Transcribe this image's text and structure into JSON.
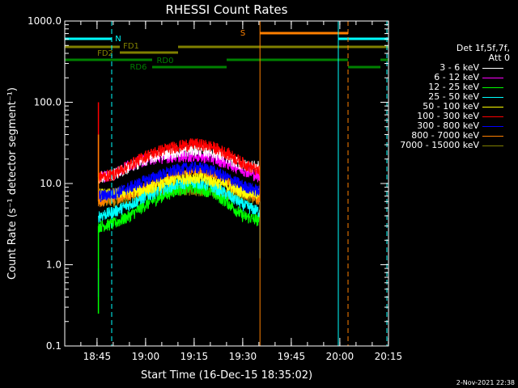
{
  "chart_data": {
    "type": "line",
    "title": "RHESSI Count Rates",
    "xlabel": "Start Time (16-Dec-15 18:35:02)",
    "ylabel": "Count Rate (s⁻¹ detector segment⁻¹)",
    "ylog": true,
    "ylim": [
      0.1,
      1000
    ],
    "xlim_minutes": [
      0,
      100
    ],
    "y_ticks": [
      {
        "value": 1000,
        "label": "1000.0"
      },
      {
        "value": 100,
        "label": "100.0"
      },
      {
        "value": 10,
        "label": "10.0"
      },
      {
        "value": 1,
        "label": "1.0"
      },
      {
        "value": 0.1,
        "label": "0.1"
      }
    ],
    "x_ticks": [
      {
        "minute": 9.97,
        "label": "18:45"
      },
      {
        "minute": 24.97,
        "label": "19:00"
      },
      {
        "minute": 39.97,
        "label": "19:15"
      },
      {
        "minute": 54.97,
        "label": "19:30"
      },
      {
        "minute": 69.97,
        "label": "19:45"
      },
      {
        "minute": 84.97,
        "label": "20:00"
      },
      {
        "minute": 99.97,
        "label": "20:15"
      }
    ],
    "data_window_minutes": [
      10.4,
      60.3
    ],
    "series": [
      {
        "name": "3 - 6 keV",
        "color": "#ffffff",
        "profile": [
          [
            10.4,
            12
          ],
          [
            15,
            13
          ],
          [
            20,
            16
          ],
          [
            25,
            20
          ],
          [
            30,
            23
          ],
          [
            35,
            25
          ],
          [
            40,
            26
          ],
          [
            45,
            25
          ],
          [
            50,
            21
          ],
          [
            55,
            17
          ],
          [
            60.3,
            16
          ]
        ]
      },
      {
        "name": "6 - 12 keV",
        "color": "#ff00ff",
        "profile": [
          [
            10.4,
            12
          ],
          [
            15,
            13
          ],
          [
            20,
            17
          ],
          [
            25,
            20
          ],
          [
            30,
            21
          ],
          [
            35,
            22
          ],
          [
            40,
            22
          ],
          [
            45,
            21
          ],
          [
            50,
            18
          ],
          [
            55,
            15
          ],
          [
            60.3,
            12
          ]
        ]
      },
      {
        "name": "12 - 25 keV",
        "color": "#00ff00",
        "profile": [
          [
            10.4,
            3
          ],
          [
            15,
            3.2
          ],
          [
            20,
            4
          ],
          [
            25,
            5.5
          ],
          [
            30,
            7
          ],
          [
            35,
            8.5
          ],
          [
            40,
            9
          ],
          [
            45,
            8
          ],
          [
            50,
            6
          ],
          [
            55,
            4
          ],
          [
            60.3,
            3.5
          ]
        ]
      },
      {
        "name": "25 - 50 keV",
        "color": "#00ffff",
        "profile": [
          [
            10.4,
            4
          ],
          [
            15,
            4.5
          ],
          [
            20,
            5.5
          ],
          [
            25,
            7
          ],
          [
            30,
            8.5
          ],
          [
            35,
            10
          ],
          [
            40,
            10.5
          ],
          [
            45,
            9.5
          ],
          [
            50,
            7.5
          ],
          [
            55,
            5.5
          ],
          [
            60.3,
            4.5
          ]
        ]
      },
      {
        "name": "50 - 100 keV",
        "color": "#ffff00",
        "profile": [
          [
            10.4,
            7.5
          ],
          [
            15,
            7.5
          ],
          [
            20,
            8
          ],
          [
            25,
            8.5
          ],
          [
            30,
            10
          ],
          [
            35,
            11.5
          ],
          [
            40,
            12
          ],
          [
            45,
            11
          ],
          [
            50,
            9.5
          ],
          [
            55,
            8
          ],
          [
            60.3,
            7.5
          ]
        ]
      },
      {
        "name": "100 - 300 keV",
        "color": "#ff0000",
        "profile": [
          [
            10.4,
            12
          ],
          [
            15,
            13
          ],
          [
            20,
            17
          ],
          [
            25,
            22
          ],
          [
            30,
            26
          ],
          [
            35,
            29
          ],
          [
            40,
            31
          ],
          [
            45,
            29
          ],
          [
            50,
            24
          ],
          [
            55,
            18
          ],
          [
            60.3,
            14
          ]
        ]
      },
      {
        "name": "300 - 800 keV",
        "color": "#0000ff",
        "profile": [
          [
            10.4,
            7
          ],
          [
            15,
            7.5
          ],
          [
            20,
            9
          ],
          [
            25,
            11
          ],
          [
            30,
            13
          ],
          [
            35,
            15
          ],
          [
            40,
            16
          ],
          [
            45,
            15
          ],
          [
            50,
            12
          ],
          [
            55,
            9.5
          ],
          [
            60.3,
            8
          ]
        ]
      },
      {
        "name": "800 - 7000 keV",
        "color": "#ff8000",
        "profile": [
          [
            10.4,
            6
          ],
          [
            15,
            6.5
          ],
          [
            20,
            7.5
          ],
          [
            25,
            9
          ],
          [
            30,
            11
          ],
          [
            35,
            13
          ],
          [
            40,
            14
          ],
          [
            45,
            13
          ],
          [
            50,
            10.5
          ],
          [
            55,
            8
          ],
          [
            60.3,
            6.5
          ]
        ]
      },
      {
        "name": "7000 - 15000 keV",
        "color": "#808000",
        "profile": [
          [
            10.4,
            6
          ],
          [
            15,
            6.2
          ],
          [
            20,
            6.8
          ],
          [
            25,
            7.5
          ],
          [
            30,
            8
          ],
          [
            35,
            8.5
          ],
          [
            40,
            8.5
          ],
          [
            45,
            8
          ],
          [
            50,
            7.5
          ],
          [
            55,
            7
          ],
          [
            60.3,
            6.5
          ]
        ]
      }
    ],
    "state_flags": [
      {
        "label": "N",
        "color": "#00ffff",
        "segments": [
          [
            0,
            14.5
          ],
          [
            84.5,
            100
          ]
        ]
      },
      {
        "label": "S",
        "color": "#ff8000",
        "segments": [
          [
            60.3,
            87.5
          ]
        ]
      },
      {
        "label": "FD1",
        "color": "#808000",
        "segments": [
          [
            0,
            17
          ],
          [
            35,
            100
          ]
        ]
      },
      {
        "label": "FD2",
        "color": "#808000",
        "segments": [
          [
            17,
            35
          ]
        ]
      },
      {
        "label": "RD0",
        "color": "#008000",
        "segments": [
          [
            0,
            27
          ],
          [
            50,
            87.5
          ],
          [
            97.5,
            100
          ]
        ]
      },
      {
        "label": "RD6",
        "color": "#008000",
        "segments": [
          [
            27,
            50
          ],
          [
            87.5,
            97.5
          ]
        ]
      }
    ],
    "vertical_markers": [
      {
        "minute": 0,
        "color": "#00ffff",
        "style": "solid"
      },
      {
        "minute": 14.5,
        "color": "#00ffff",
        "style": "dashed"
      },
      {
        "minute": 60.3,
        "color": "#ff8000",
        "style": "solid"
      },
      {
        "minute": 84.5,
        "color": "#00ffff",
        "style": "solid"
      },
      {
        "minute": 87.5,
        "color": "#ff8000",
        "style": "dashed"
      },
      {
        "minute": 99.5,
        "color": "#00ffff",
        "style": "dashed"
      }
    ],
    "legend_header": [
      "Det 1f,5f,7f,",
      "Att 0"
    ],
    "legend_placement": "right",
    "timestamp": "2-Nov-2021 22:38"
  }
}
